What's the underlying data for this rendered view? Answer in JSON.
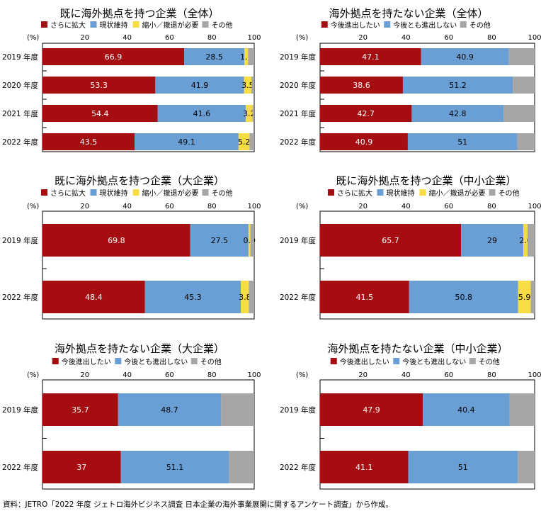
{
  "source_note": "資料：JETRO「2022 年度 ジェトロ海外ビジネス調査 日本企業の海外事業展開に関するアンケート調査」から作成。",
  "colors": {
    "red": "#a50d10",
    "blue": "#6a9fd6",
    "yellow": "#f7dc43",
    "gray": "#a6a6a6"
  },
  "chart_data": [
    {
      "type": "bar",
      "orientation": "horizontal",
      "stacked": true,
      "title": "既に海外拠点を持つ企業（全体）",
      "xlabel": "(%)",
      "xlim": [
        0,
        100
      ],
      "xticks": [
        20,
        40,
        60,
        80,
        100
      ],
      "categories": [
        "2019 年度",
        "2020 年度",
        "2021 年度",
        "2022 年度"
      ],
      "series": [
        {
          "name": "さらに拡大",
          "color": "#a50d10",
          "values": [
            66.9,
            53.3,
            54.4,
            43.5
          ],
          "labels": [
            "66.9",
            "53.3",
            "54.4",
            "43.5"
          ]
        },
        {
          "name": "現状維持",
          "color": "#6a9fd6",
          "values": [
            28.5,
            41.9,
            41.6,
            49.1
          ],
          "labels": [
            "28.5",
            "41.9",
            "41.6",
            "49.1"
          ]
        },
        {
          "name": "縮小／撤退が必要",
          "color": "#f7dc43",
          "values": [
            1.7,
            3.5,
            3.2,
            5.2
          ],
          "labels": [
            "1.7",
            "3.5",
            "3.2",
            "5.2"
          ]
        },
        {
          "name": "その他",
          "color": "#a6a6a6",
          "values": [
            2.9,
            1.3,
            0.8,
            2.2
          ],
          "labels": [
            "",
            "",
            "",
            ""
          ]
        }
      ]
    },
    {
      "type": "bar",
      "orientation": "horizontal",
      "stacked": true,
      "title": "海外拠点を持たない企業（全体）",
      "xlabel": "(%)",
      "xlim": [
        0,
        100
      ],
      "xticks": [
        20,
        40,
        60,
        80,
        100
      ],
      "categories": [
        "2019 年度",
        "2020 年度",
        "2021 年度",
        "2022 年度"
      ],
      "series": [
        {
          "name": "今後進出したい",
          "color": "#a50d10",
          "values": [
            47.1,
            38.6,
            42.7,
            40.9
          ],
          "labels": [
            "47.1",
            "38.6",
            "42.7",
            "40.9"
          ]
        },
        {
          "name": "今後とも進出しない",
          "color": "#6a9fd6",
          "values": [
            40.9,
            51.2,
            42.8,
            51
          ],
          "labels": [
            "40.9",
            "51.2",
            "42.8",
            "51"
          ]
        },
        {
          "name": "その他",
          "color": "#a6a6a6",
          "values": [
            12.0,
            10.2,
            14.5,
            8.1
          ],
          "labels": [
            "",
            "",
            "",
            ""
          ]
        }
      ]
    },
    {
      "type": "bar",
      "orientation": "horizontal",
      "stacked": true,
      "title": "既に海外拠点を持つ企業（大企業）",
      "xlabel": "(%)",
      "xlim": [
        0,
        100
      ],
      "xticks": [
        20,
        40,
        60,
        80,
        100
      ],
      "categories": [
        "2019 年度",
        "2022 年度"
      ],
      "series": [
        {
          "name": "さらに拡大",
          "color": "#a50d10",
          "values": [
            69.8,
            48.4
          ],
          "labels": [
            "69.8",
            "48.4"
          ]
        },
        {
          "name": "現状維持",
          "color": "#6a9fd6",
          "values": [
            27.5,
            45.3
          ],
          "labels": [
            "27.5",
            "45.3"
          ]
        },
        {
          "name": "縮小／撤退が必要",
          "color": "#f7dc43",
          "values": [
            0.9,
            3.8
          ],
          "labels": [
            "0.9",
            "3.8"
          ]
        },
        {
          "name": "その他",
          "color": "#a6a6a6",
          "values": [
            1.8,
            2.5
          ],
          "labels": [
            "",
            ""
          ]
        }
      ]
    },
    {
      "type": "bar",
      "orientation": "horizontal",
      "stacked": true,
      "title": "既に海外拠点を持つ企業（中小企業）",
      "xlabel": "(%)",
      "xlim": [
        0,
        100
      ],
      "xticks": [
        20,
        40,
        60,
        80,
        100
      ],
      "categories": [
        "2019 年度",
        "2022 年度"
      ],
      "series": [
        {
          "name": "さらに拡大",
          "color": "#a50d10",
          "values": [
            65.7,
            41.5
          ],
          "labels": [
            "65.7",
            "41.5"
          ]
        },
        {
          "name": "現状維持",
          "color": "#6a9fd6",
          "values": [
            29,
            50.8
          ],
          "labels": [
            "29",
            "50.8"
          ]
        },
        {
          "name": "縮小／撤退が必要",
          "color": "#f7dc43",
          "values": [
            2.0,
            5.9
          ],
          "labels": [
            "2.0",
            "5.9"
          ]
        },
        {
          "name": "その他",
          "color": "#a6a6a6",
          "values": [
            3.3,
            1.8
          ],
          "labels": [
            "",
            ""
          ]
        }
      ]
    },
    {
      "type": "bar",
      "orientation": "horizontal",
      "stacked": true,
      "title": "海外拠点を持たない企業（大企業）",
      "xlabel": "(%)",
      "xlim": [
        0,
        100
      ],
      "xticks": [
        20,
        40,
        60,
        80,
        100
      ],
      "categories": [
        "2019 年度",
        "2022 年度"
      ],
      "series": [
        {
          "name": "今後進出したい",
          "color": "#a50d10",
          "values": [
            35.7,
            37
          ],
          "labels": [
            "35.7",
            "37"
          ]
        },
        {
          "name": "今後とも進出しない",
          "color": "#6a9fd6",
          "values": [
            48.7,
            51.1
          ],
          "labels": [
            "48.7",
            "51.1"
          ]
        },
        {
          "name": "その他",
          "color": "#a6a6a6",
          "values": [
            15.6,
            11.9
          ],
          "labels": [
            "",
            ""
          ]
        }
      ]
    },
    {
      "type": "bar",
      "orientation": "horizontal",
      "stacked": true,
      "title": "海外拠点を持たない企業（中小企業）",
      "xlabel": "(%)",
      "xlim": [
        0,
        100
      ],
      "xticks": [
        20,
        40,
        60,
        80,
        100
      ],
      "categories": [
        "2019 年度",
        "2022 年度"
      ],
      "series": [
        {
          "name": "今後進出したい",
          "color": "#a50d10",
          "values": [
            47.9,
            41.1
          ],
          "labels": [
            "47.9",
            "41.1"
          ]
        },
        {
          "name": "今後とも進出しない",
          "color": "#6a9fd6",
          "values": [
            40.4,
            51
          ],
          "labels": [
            "40.4",
            "51"
          ]
        },
        {
          "name": "その他",
          "color": "#a6a6a6",
          "values": [
            11.7,
            7.9
          ],
          "labels": [
            "",
            ""
          ]
        }
      ]
    }
  ]
}
